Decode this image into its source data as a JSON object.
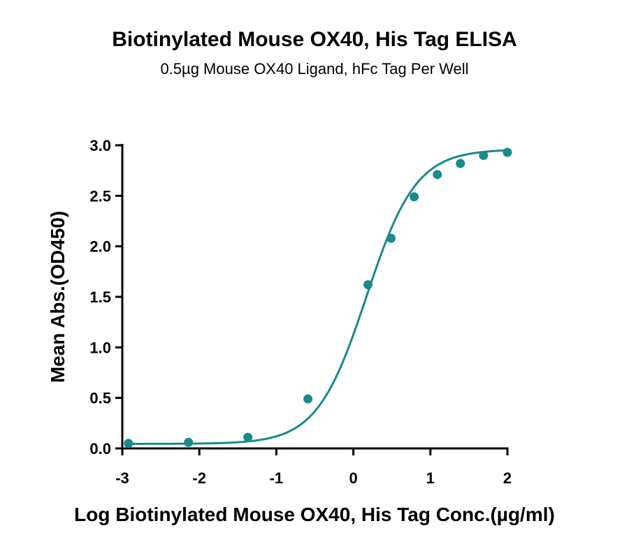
{
  "chart_data": {
    "type": "scatter",
    "title": "Biotinylated Mouse OX40, His Tag ELISA",
    "subtitle": "0.5µg Mouse OX40 Ligand, hFc Tag Per Well",
    "xlabel": "Log Biotinylated Mouse OX40, His Tag Conc.(µg/ml)",
    "ylabel": "Mean Abs.(OD450)",
    "xlim": [
      -3,
      2
    ],
    "ylim": [
      0,
      3
    ],
    "x_ticks": [
      "-3",
      "-2",
      "-1",
      "0",
      "1",
      "2"
    ],
    "y_ticks": [
      "0.0",
      "0.5",
      "1.0",
      "1.5",
      "2.0",
      "2.5",
      "3.0"
    ],
    "grid": false,
    "series": [
      {
        "x": [
          -2.92,
          -2.14,
          -1.37,
          -0.59,
          0.19,
          0.49,
          0.79,
          1.09,
          1.39,
          1.69,
          2.0
        ],
        "y": [
          0.05,
          0.06,
          0.11,
          0.49,
          1.62,
          2.08,
          2.49,
          2.71,
          2.82,
          2.9,
          2.93
        ]
      }
    ],
    "curve": "four-parameter logistic fit",
    "color": "#1a8a8a"
  }
}
